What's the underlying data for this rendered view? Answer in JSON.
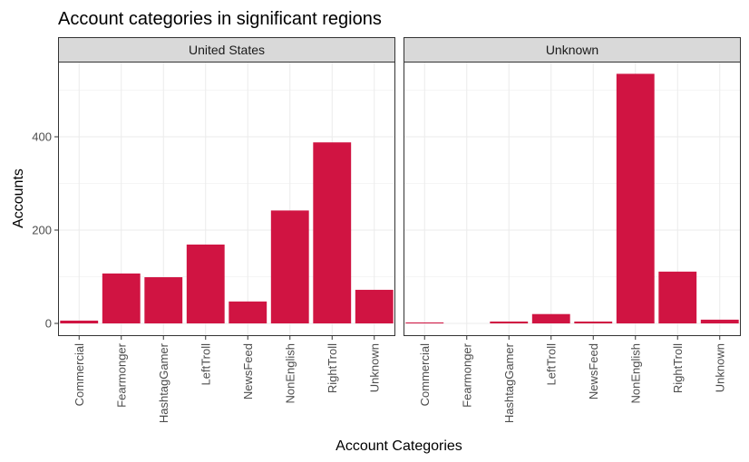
{
  "chart_data": {
    "type": "bar",
    "title": "Account categories in significant regions",
    "xlabel": "Account Categories",
    "ylabel": "Accounts",
    "ylim": [
      0,
      560
    ],
    "yticks": [
      0,
      200,
      400
    ],
    "grid": true,
    "colors": {
      "bar": "#d01442",
      "strip_bg": "#d9d9d9",
      "panel_border": "#333333",
      "grid_major": "#ebebeb",
      "grid_minor": "#f5f5f5"
    },
    "categories": [
      "Commercial",
      "Fearmonger",
      "HashtagGamer",
      "LeftTroll",
      "NewsFeed",
      "NonEnglish",
      "RightTroll",
      "Unknown"
    ],
    "facets": [
      {
        "name": "United States",
        "values": [
          6,
          107,
          99,
          169,
          47,
          242,
          388,
          72
        ]
      },
      {
        "name": "Unknown",
        "values": [
          2,
          0,
          4,
          20,
          4,
          535,
          111,
          8
        ]
      }
    ]
  }
}
